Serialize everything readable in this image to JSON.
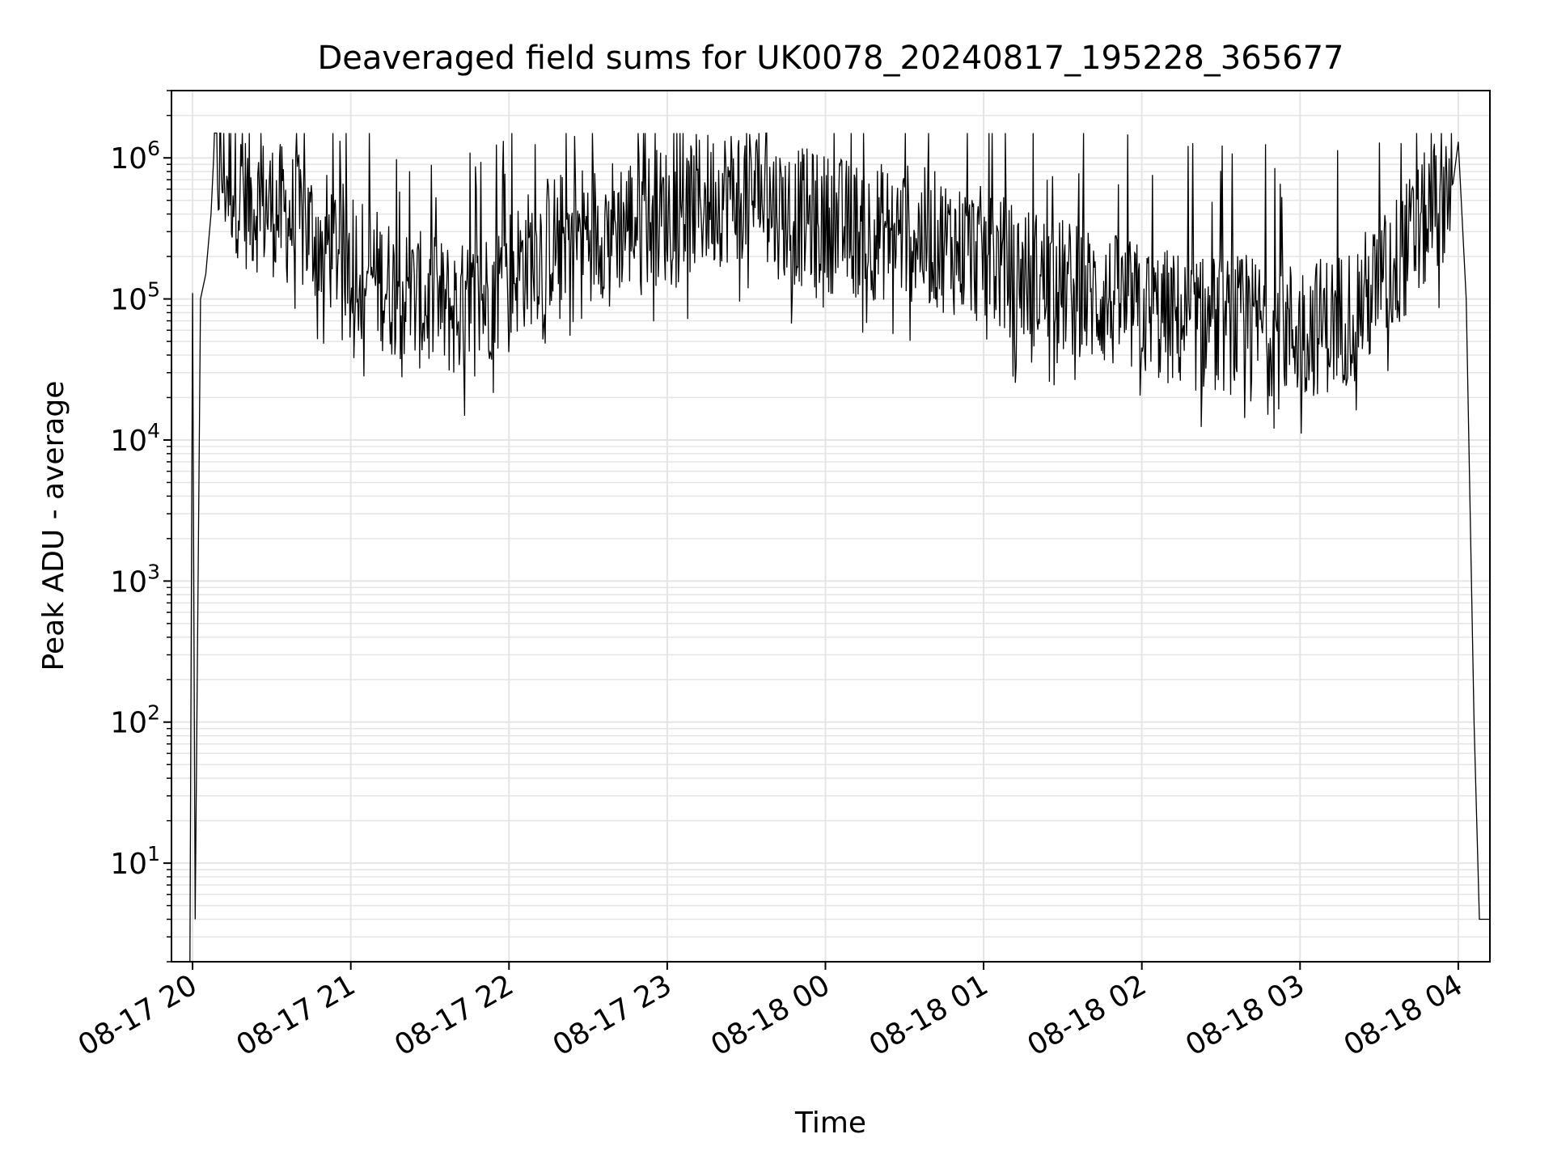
{
  "chart_data": {
    "type": "line",
    "title": "Deaveraged field sums for UK0078_20240817_195228_365677",
    "xlabel": "Time",
    "ylabel": "Peak ADU - average",
    "y_scale": "log",
    "ylim": [
      2,
      3000000
    ],
    "xlim": [
      "2024-08-17 19:52",
      "2024-08-18 04:12"
    ],
    "x_ticks": [
      "08-17 20",
      "08-17 21",
      "08-17 22",
      "08-17 23",
      "08-18 00",
      "08-18 01",
      "08-18 02",
      "08-18 03",
      "08-18 04"
    ],
    "y_ticks": [
      {
        "base": "10",
        "exp": "1",
        "value": 10
      },
      {
        "base": "10",
        "exp": "2",
        "value": 100
      },
      {
        "base": "10",
        "exp": "3",
        "value": 1000
      },
      {
        "base": "10",
        "exp": "4",
        "value": 10000
      },
      {
        "base": "10",
        "exp": "5",
        "value": 100000
      },
      {
        "base": "10",
        "exp": "6",
        "value": 1000000
      }
    ],
    "grid": true,
    "line_color": "#000000",
    "grid_color": "#e5e5e5",
    "series": [
      {
        "x": [
          "2024-08-17 19:59",
          "2024-08-17 20:00",
          "2024-08-17 20:01",
          "2024-08-17 20:03",
          "2024-08-17 20:05",
          "2024-08-17 20:07",
          "2024-08-17 20:08",
          "2024-08-17 20:10",
          "2024-08-17 20:15",
          "2024-08-17 20:20",
          "2024-08-17 20:30",
          "2024-08-17 20:45",
          "2024-08-17 21:00",
          "2024-08-17 21:15",
          "2024-08-17 21:30",
          "2024-08-17 21:45",
          "2024-08-17 22:00",
          "2024-08-17 22:15",
          "2024-08-17 22:30",
          "2024-08-17 22:45",
          "2024-08-17 23:00",
          "2024-08-17 23:15",
          "2024-08-17 23:30",
          "2024-08-17 23:45",
          "2024-08-18 00:00",
          "2024-08-18 00:15",
          "2024-08-18 00:30",
          "2024-08-18 00:45",
          "2024-08-18 01:00",
          "2024-08-18 01:15",
          "2024-08-18 01:30",
          "2024-08-18 01:45",
          "2024-08-18 02:00",
          "2024-08-18 02:15",
          "2024-08-18 02:30",
          "2024-08-18 02:45",
          "2024-08-18 03:00",
          "2024-08-18 03:15",
          "2024-08-18 03:30",
          "2024-08-18 03:45",
          "2024-08-18 03:55",
          "2024-08-18 04:00",
          "2024-08-18 04:03",
          "2024-08-18 04:06",
          "2024-08-18 04:08",
          "2024-08-18 04:12"
        ],
        "y": [
          2,
          110000,
          4,
          100000,
          150000,
          400000,
          1600000,
          800000,
          700000,
          500000,
          450000,
          300000,
          200000,
          120000,
          90000,
          80000,
          150000,
          250000,
          300000,
          350000,
          400000,
          500000,
          600000,
          400000,
          350000,
          300000,
          300000,
          250000,
          200000,
          150000,
          120000,
          100000,
          80000,
          70000,
          65000,
          65000,
          60000,
          70000,
          120000,
          300000,
          600000,
          1300000,
          100000,
          100,
          4,
          4
        ]
      }
    ]
  }
}
